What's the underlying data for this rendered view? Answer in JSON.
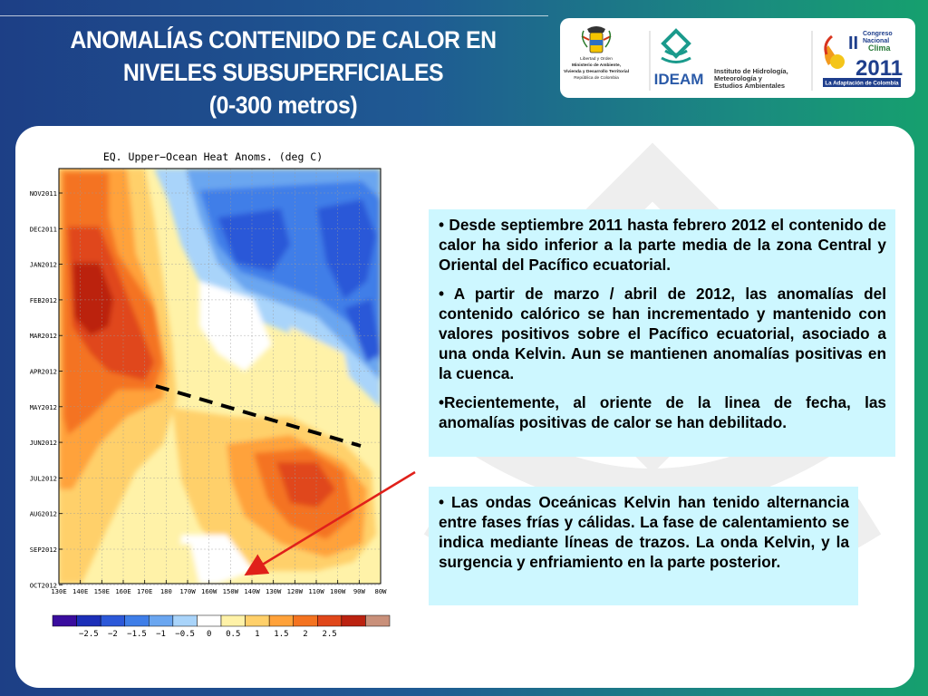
{
  "header": {
    "title_lines": [
      "ANOMALÍAS CONTENIDO DE CALOR EN",
      "NIVELES SUBSUPERFICIALES",
      "(0-300 metros)"
    ]
  },
  "logos": {
    "ministry_lines": [
      "Libertad y Orden",
      "Ministerio de Ambiente,",
      "Vivienda y Desarrollo Territorial",
      "República de Colombia"
    ],
    "ideam_name": "IDEAM",
    "ideam_lines": [
      "Instituto de Hidrología,",
      "Meteorología y",
      "Estudios Ambientales"
    ],
    "congress_numeral": "II",
    "congress_lines": [
      "Congreso",
      "Nacional",
      "Clima"
    ],
    "congress_year": "2011",
    "congress_slogan": "La Adaptación de Colombia"
  },
  "text_box_1": [
    "• Desde septiembre 2011 hasta febrero 2012 el contenido de calor ha sido inferior a la parte media de la zona Central y Oriental del Pacífico ecuatorial.",
    "• A partir de marzo / abril de 2012, las anomalías del contenido calórico se han incrementado y mantenido con valores positivos sobre el Pacífico ecuatorial, asociado a una onda Kelvin. Aun se mantienen anomalías positivas en la cuenca.",
    "•Recientemente, al oriente de la linea de fecha, las anomalías positivas de calor se han debilitado."
  ],
  "text_box_2": [
    "• Las ondas Oceánicas Kelvin han tenido alternancia entre fases frías y cálidas. La fase de calentamiento se indica mediante líneas de trazos. La onda Kelvin, y la surgencia y enfriamiento en la parte posterior."
  ],
  "chart_data": {
    "type": "heatmap",
    "title": "EQ. Upper−Ocean Heat Anoms. (deg C)",
    "x_ticks": [
      "130E",
      "140E",
      "150E",
      "160E",
      "170E",
      "180",
      "170W",
      "160W",
      "150W",
      "140W",
      "130W",
      "120W",
      "110W",
      "100W",
      "90W",
      "80W"
    ],
    "y_ticks": [
      "NOV2011",
      "DEC2011",
      "JAN2012",
      "FEB2012",
      "MAR2012",
      "APR2012",
      "MAY2012",
      "JUN2012",
      "JUL2012",
      "AUG2012",
      "SEP2012",
      "OCT2012"
    ],
    "colorbar": {
      "ticks": [
        "−2.5",
        "−2",
        "−1.5",
        "−1",
        "−0.5",
        "0",
        "0.5",
        "1",
        "1.5",
        "2",
        "2.5"
      ],
      "colors": [
        "#3a0d9e",
        "#1c2fb8",
        "#2c58d8",
        "#3f7ee8",
        "#6aa6f0",
        "#a9d4fa",
        "#ffffff",
        "#fff2a8",
        "#ffd06a",
        "#ffa23a",
        "#f47320",
        "#e0471a",
        "#bb2210",
        "#c9907a"
      ]
    },
    "annotations": [
      "dashed black line indicating Kelvin wave warm phase",
      "red arrow pointing from text box to chart"
    ]
  }
}
